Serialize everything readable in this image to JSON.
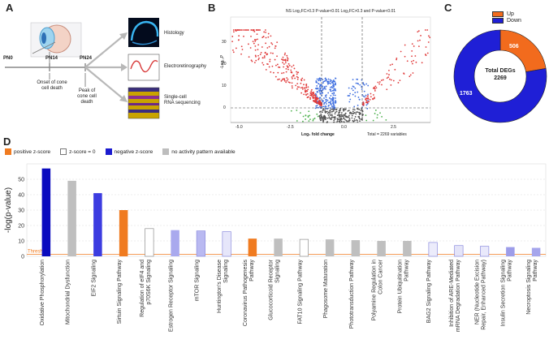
{
  "panelA": {
    "letter": "A",
    "timeline": [
      "PN0",
      "PN14",
      "PN24"
    ],
    "onset": [
      "Onset of cone",
      "cell death"
    ],
    "peak": [
      "Peak of",
      "cone cell",
      "death"
    ],
    "methods": [
      {
        "label": "Histology"
      },
      {
        "label": "Electroretinography"
      },
      {
        "label": "Single-cell",
        "label2": "RNA sequencing"
      }
    ]
  },
  "panelB": {
    "letter": "B",
    "legend": "NS  Log₂FC>0.3  P-value<0.01  Log₂FC>0.3 and P-value<0.01",
    "ylabel": "-Log₁₀P",
    "xlabel": "Log₂ fold change",
    "total": "Total = 2269 variables",
    "xticks": [
      "-5.0",
      "-2.5",
      "0.0",
      "2.5"
    ],
    "yticks": [
      "0",
      "10",
      "20",
      "30"
    ]
  },
  "panelC": {
    "letter": "C",
    "legend": [
      {
        "label": "Up",
        "color": "#f26b1d"
      },
      {
        "label": "Down",
        "color": "#1f1fd6"
      }
    ],
    "center1": "Total DEGs",
    "center2": "2269",
    "up_value": "506",
    "down_value": "1763"
  },
  "panelD": {
    "letter": "D",
    "legend": [
      {
        "label": "positive z-score",
        "swatch": "#f07b20",
        "border": "#f07b20"
      },
      {
        "label": "z-score = 0",
        "swatch": "#ffffff",
        "border": "#777777"
      },
      {
        "label": "negative z-score",
        "swatch": "#1b1bcf",
        "border": "#1b1bcf"
      },
      {
        "label": "no activity pattern available",
        "swatch": "#bdbdbd",
        "border": "#bdbdbd"
      }
    ],
    "threshold_label": "Threshold"
  },
  "chart_data": {
    "type": "bar",
    "title": "",
    "xlabel": "",
    "ylabel": "-log(p-value)",
    "ylim": [
      0,
      60
    ],
    "yticks": [
      0,
      10,
      20,
      30,
      40,
      50
    ],
    "categories": [
      "Oxidative Phosphorylation",
      "Mitochondrial Dysfunction",
      "EIF2 Signaling",
      "Sirtuin Signaling Pathway",
      "Regulation of eIF4 and p70S6K Signaling",
      "Estrogen Receptor Signaling",
      "mTOR Signaling",
      "Huntington's Disease Signaling",
      "Coronavirus Pathogenesis Pathway",
      "Glucocorticoid Receptor Signaling",
      "FAT10 Signaling Pathway",
      "Phagosome Maturation",
      "Phototransduction Pathway",
      "Polyamine Regulation in Colon Cancer",
      "Protein Ubiquitination Pathway",
      "BAG2 Signaling Pathway",
      "Inhibition of ARE-Mediated mRNA Degradation Pathway",
      "NER (Nucleotide Excision Repair, Enhanced Pathway)",
      "Insulin Secretion Signaling Pathway",
      "Necroptosis Signaling Pathway"
    ],
    "labels_wrapped": [
      [
        "Oxidative Phosphorylation"
      ],
      [
        "Mitochondrial Dysfunction"
      ],
      [
        "EIF2 Signaling"
      ],
      [
        "Sirtuin Signaling Pathway"
      ],
      [
        "Regulation of eIF4 and",
        "p70S6K Signaling"
      ],
      [
        "Estrogen Receptor Signaling"
      ],
      [
        "mTOR Signaling"
      ],
      [
        "Huntington's Disease",
        "Signaling"
      ],
      [
        "Coronavirus Pathogenesis",
        "Pathway"
      ],
      [
        "Glucocorticoid Receptor",
        "Signaling"
      ],
      [
        "FAT10 Signaling Pathway"
      ],
      [
        "Phagosome Maturation"
      ],
      [
        "Phototransduction Pathway"
      ],
      [
        "Polyamine Regulation in",
        "Colon Cancer"
      ],
      [
        "Protein Ubiquitination",
        "Pathway"
      ],
      [
        "BAG2 Signaling Pathway"
      ],
      [
        "Inhibition of ARE-Mediated",
        "mRNA Degradation Pathway"
      ],
      [
        "NER (Nucleotide Excision",
        "Repair, Enhanced Pathway)"
      ],
      [
        "Insulin Secretion Signaling",
        "Pathway"
      ],
      [
        "Necroptosis Signaling",
        "Pathway"
      ]
    ],
    "values": [
      57,
      49,
      41,
      30,
      18,
      17,
      16.5,
      16,
      11.5,
      11.5,
      11,
      11,
      10.5,
      10,
      10,
      9,
      7,
      6.5,
      6,
      5.5
    ],
    "colors": [
      "#0b0bbf",
      "#bfbfbf",
      "#3c3ce0",
      "#f07b20",
      "#ffffff",
      "#a9a9ee",
      "#b9b9f1",
      "#e6e6fa",
      "#f07b20",
      "#bfbfbf",
      "#ffffff",
      "#bfbfbf",
      "#bfbfbf",
      "#bfbfbf",
      "#bfbfbf",
      "#ececfb",
      "#e4e4f8",
      "#e9e9fb",
      "#9d9de9",
      "#a5a5ec"
    ],
    "threshold": 1.3
  }
}
